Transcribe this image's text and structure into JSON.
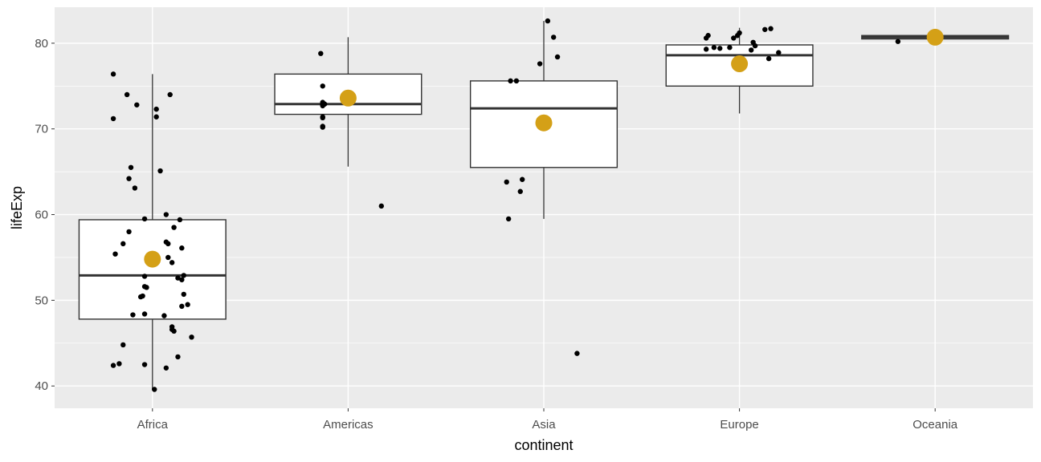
{
  "chart_data": {
    "type": "boxplot",
    "xlabel": "continent",
    "ylabel": "lifeExp",
    "categories": [
      "Africa",
      "Americas",
      "Asia",
      "Europe",
      "Oceania"
    ],
    "ylim": [
      37.4,
      84.2
    ],
    "yticks": [
      40,
      50,
      60,
      70,
      80
    ],
    "grid": true,
    "colors": {
      "panel": "#ebebeb",
      "grid": "#ffffff",
      "box_fill": "#ffffff",
      "box_line": "#333333",
      "point": "#000000",
      "mean_point": "#d4a017"
    },
    "boxes": [
      {
        "category": "Africa",
        "lower_whisker": 39.6,
        "q1": 47.8,
        "median": 52.9,
        "q3": 59.4,
        "upper_whisker": 76.4,
        "mean": 54.8
      },
      {
        "category": "Americas",
        "lower_whisker": 65.6,
        "q1": 71.7,
        "median": 72.9,
        "q3": 76.4,
        "upper_whisker": 80.7,
        "mean": 73.6
      },
      {
        "category": "Asia",
        "lower_whisker": 59.5,
        "q1": 65.5,
        "median": 72.4,
        "q3": 75.6,
        "upper_whisker": 82.6,
        "mean": 70.7
      },
      {
        "category": "Europe",
        "lower_whisker": 71.8,
        "q1": 75.0,
        "median": 78.6,
        "q3": 79.8,
        "upper_whisker": 81.8,
        "mean": 77.6
      },
      {
        "category": "Oceania",
        "lower_whisker": 80.2,
        "q1": 80.5,
        "median": 80.7,
        "q3": 80.9,
        "upper_whisker": 81.2,
        "mean": 80.7
      }
    ],
    "outliers": [
      {
        "category": "Americas",
        "value": 61.0
      },
      {
        "category": "Asia",
        "value": 43.8
      }
    ],
    "points": [
      {
        "category": "Africa",
        "jitter": [
          [
            -0.2,
            76.4
          ],
          [
            -0.13,
            74.0
          ],
          [
            0.09,
            74.0
          ],
          [
            -0.08,
            72.8
          ],
          [
            -0.2,
            71.2
          ],
          [
            0.02,
            71.4
          ],
          [
            0.02,
            72.3
          ],
          [
            -0.11,
            65.5
          ],
          [
            0.04,
            65.1
          ],
          [
            -0.12,
            64.2
          ],
          [
            -0.09,
            63.1
          ],
          [
            0.07,
            60.0
          ],
          [
            0.14,
            59.4
          ],
          [
            -0.04,
            59.5
          ],
          [
            -0.12,
            58.0
          ],
          [
            0.11,
            58.5
          ],
          [
            -0.15,
            56.6
          ],
          [
            0.07,
            56.8
          ],
          [
            0.08,
            56.6
          ],
          [
            0.15,
            56.1
          ],
          [
            -0.19,
            55.4
          ],
          [
            0.08,
            55.0
          ],
          [
            0.1,
            54.4
          ],
          [
            0.13,
            52.6
          ],
          [
            -0.04,
            52.8
          ],
          [
            0.16,
            52.9
          ],
          [
            0.15,
            52.4
          ],
          [
            -0.04,
            51.6
          ],
          [
            -0.03,
            51.5
          ],
          [
            -0.05,
            50.5
          ],
          [
            -0.06,
            50.4
          ],
          [
            0.16,
            50.7
          ],
          [
            0.15,
            49.3
          ],
          [
            0.18,
            49.5
          ],
          [
            -0.1,
            48.3
          ],
          [
            -0.04,
            48.4
          ],
          [
            0.06,
            48.2
          ],
          [
            0.1,
            46.9
          ],
          [
            0.11,
            46.4
          ],
          [
            0.1,
            46.6
          ],
          [
            0.2,
            45.7
          ],
          [
            -0.15,
            44.8
          ],
          [
            0.13,
            43.4
          ],
          [
            -0.2,
            42.4
          ],
          [
            -0.17,
            42.6
          ],
          [
            -0.04,
            42.5
          ],
          [
            0.07,
            42.1
          ],
          [
            0.01,
            39.6
          ]
        ]
      },
      {
        "category": "Americas",
        "jitter": [
          [
            -0.14,
            78.8
          ],
          [
            -0.13,
            75.0
          ],
          [
            -0.13,
            70.2
          ],
          [
            -0.13,
            70.3
          ],
          [
            -0.13,
            71.4
          ],
          [
            -0.13,
            71.3
          ],
          [
            -0.13,
            72.9
          ],
          [
            -0.13,
            73.1
          ],
          [
            -0.13,
            72.8
          ],
          [
            -0.12,
            72.9
          ],
          [
            -0.13,
            72.9
          ],
          [
            -0.13,
            72.8
          ],
          [
            -0.13,
            72.9
          ],
          [
            -0.13,
            72.7
          ],
          [
            -0.13,
            72.9
          ],
          [
            -0.13,
            72.9
          ]
        ]
      },
      {
        "category": "Asia",
        "jitter": [
          [
            -0.17,
            75.6
          ],
          [
            -0.14,
            75.6
          ],
          [
            -0.19,
            63.8
          ],
          [
            -0.11,
            64.1
          ],
          [
            -0.12,
            62.7
          ],
          [
            -0.18,
            59.5
          ],
          [
            0.02,
            82.6
          ],
          [
            0.05,
            80.7
          ],
          [
            0.07,
            78.4
          ],
          [
            -0.02,
            77.6
          ]
        ]
      },
      {
        "category": "Europe",
        "jitter": [
          [
            -0.17,
            80.6
          ],
          [
            -0.16,
            80.9
          ],
          [
            -0.13,
            79.5
          ],
          [
            -0.17,
            79.3
          ],
          [
            -0.1,
            79.4
          ],
          [
            -0.05,
            79.5
          ],
          [
            -0.03,
            80.6
          ],
          [
            -0.01,
            80.9
          ],
          [
            0.0,
            81.2
          ],
          [
            0.07,
            80.1
          ],
          [
            0.06,
            79.2
          ],
          [
            0.08,
            79.7
          ],
          [
            0.13,
            81.6
          ],
          [
            0.16,
            81.7
          ],
          [
            0.2,
            78.9
          ],
          [
            0.15,
            78.2
          ]
        ]
      },
      {
        "category": "Oceania",
        "jitter": [
          [
            -0.19,
            80.2
          ]
        ]
      }
    ]
  }
}
